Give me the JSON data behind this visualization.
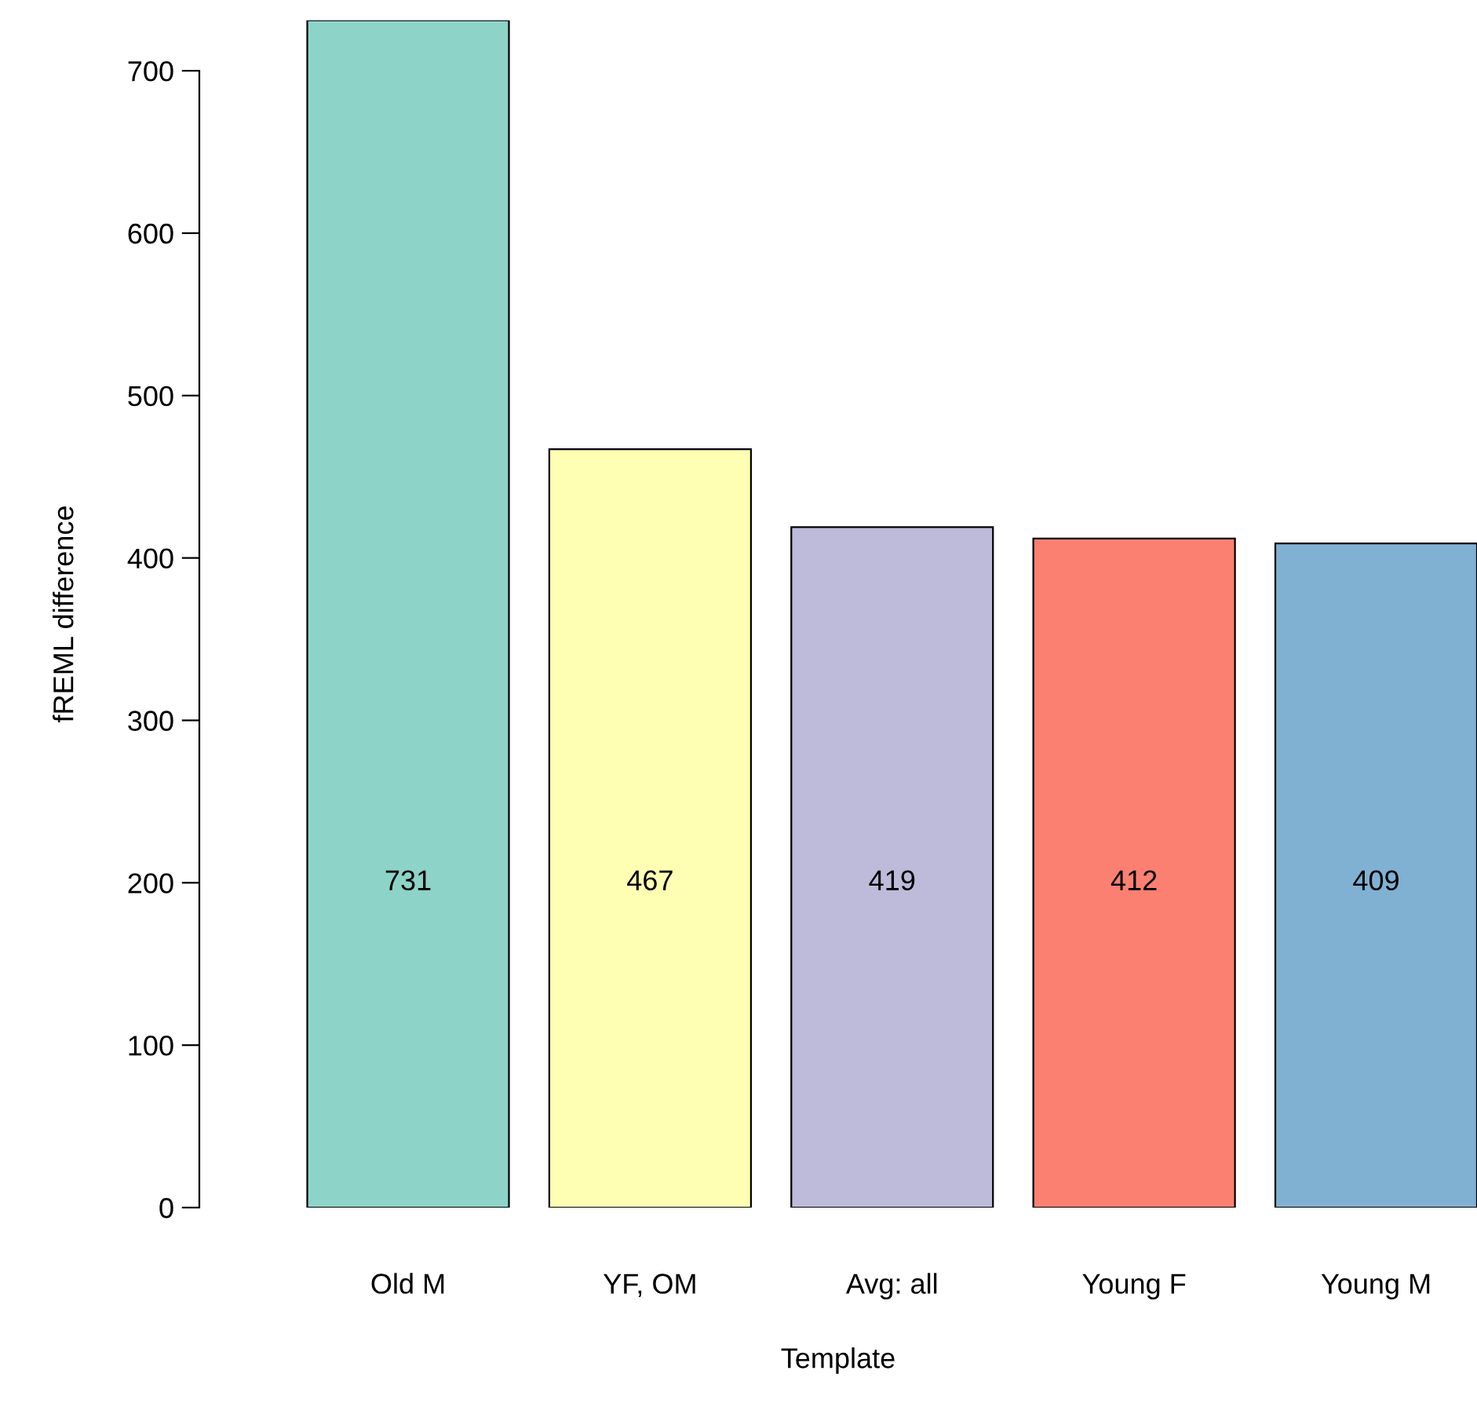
{
  "chart_data": {
    "type": "bar",
    "xlabel": "Template",
    "ylabel": "fREML difference",
    "categories": [
      "Old M",
      "YF, OM",
      "Avg: all",
      "Young F",
      "Young M"
    ],
    "values": [
      731,
      467,
      419,
      412,
      409
    ],
    "colors": [
      "#8dd3c7",
      "#ffffb3",
      "#bebada",
      "#fb8072",
      "#80b1d3"
    ],
    "ylim": [
      0,
      731
    ],
    "yticks": [
      0,
      100,
      200,
      300,
      400,
      500,
      600,
      700
    ],
    "grid": false,
    "data_labels": true
  }
}
